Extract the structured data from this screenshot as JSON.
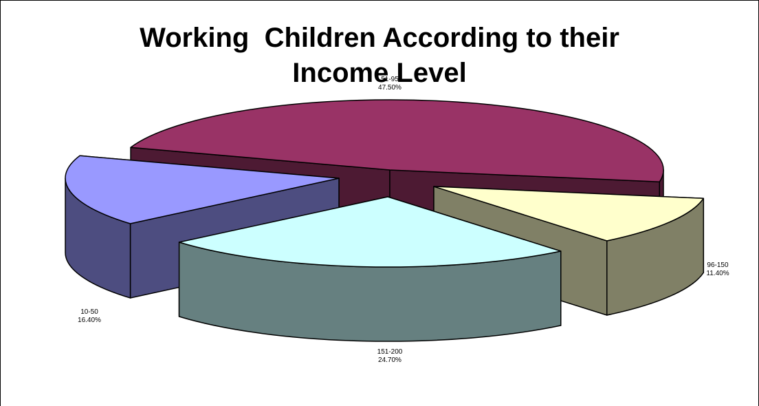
{
  "chart_data": {
    "type": "pie",
    "title": "Working  Children According to their Income Level",
    "title_lines": [
      "Working  Children According to their",
      "Income Level"
    ],
    "slices": [
      {
        "category": "51-95",
        "value": 47.5,
        "label_pct": "47.50%",
        "top_color": "#993366",
        "side_color": "#4d1a33"
      },
      {
        "category": "96-150",
        "value": 11.4,
        "label_pct": "11.40%",
        "top_color": "#ffffcc",
        "side_color": "#808066"
      },
      {
        "category": "151-200",
        "value": 24.7,
        "label_pct": "24.70%",
        "top_color": "#ccffff",
        "side_color": "#668080"
      },
      {
        "category": "10-50",
        "value": 16.4,
        "label_pct": "16.40%",
        "top_color": "#9999ff",
        "side_color": "#4d4d80"
      }
    ],
    "exploded": true,
    "legend": "none"
  }
}
